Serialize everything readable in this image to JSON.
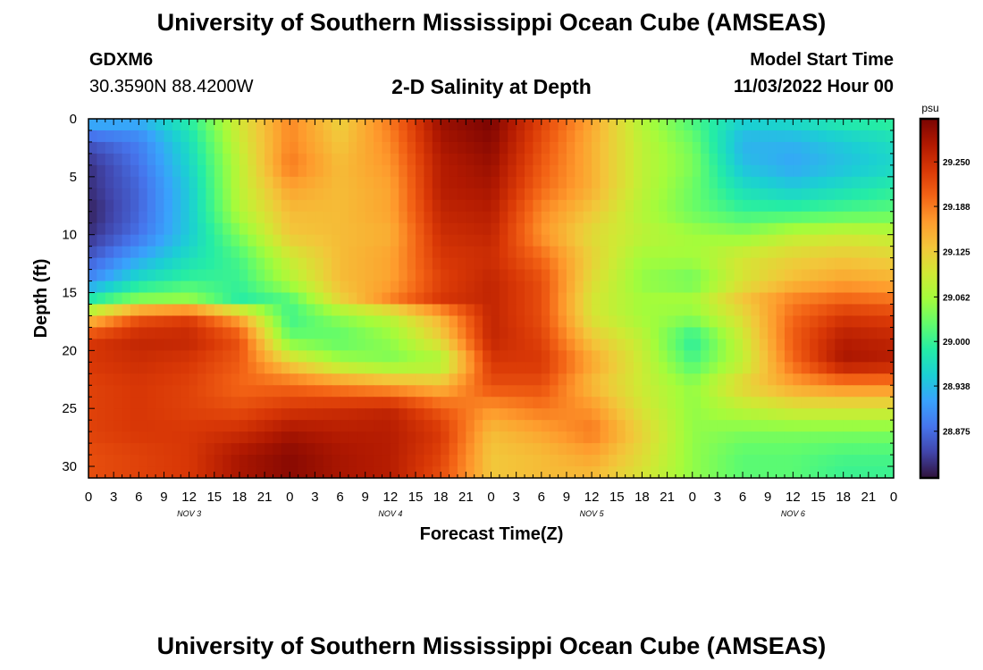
{
  "header": {
    "title": "University of Southern Mississippi Ocean Cube (AMSEAS)",
    "station_id": "GDXM6",
    "coordinates": "30.3590N  88.4200W",
    "chart_title": "2-D Salinity at Depth",
    "model_start_label": "Model Start Time",
    "model_start_value": "11/03/2022 Hour 00"
  },
  "footer": {
    "title": "University of Southern Mississippi Ocean Cube (AMSEAS)"
  },
  "colors": {
    "scale": [
      "#30123b",
      "#4145ab",
      "#4675ed",
      "#39a2fc",
      "#1bcfd4",
      "#24eca6",
      "#61fc6c",
      "#a4fc3b",
      "#d1e834",
      "#f3c63a",
      "#fe9b2d",
      "#f36315",
      "#d93806",
      "#b11901",
      "#7a0402"
    ]
  },
  "chart_data": {
    "type": "heatmap",
    "xlabel": "Forecast Time(Z)",
    "ylabel": "Depth (ft)",
    "x_ticks": [
      "0",
      "3",
      "6",
      "9",
      "12",
      "15",
      "18",
      "21",
      "0",
      "3",
      "6",
      "9",
      "12",
      "15",
      "18",
      "21",
      "0",
      "3",
      "6",
      "9",
      "12",
      "15",
      "18",
      "21",
      "0",
      "3",
      "6",
      "9",
      "12",
      "15",
      "18",
      "21",
      "0"
    ],
    "date_labels": [
      {
        "label": "NOV 3",
        "hour": 12
      },
      {
        "label": "NOV 4",
        "hour": 36
      },
      {
        "label": "NOV 5",
        "hour": 60
      },
      {
        "label": "NOV 6",
        "hour": 84
      }
    ],
    "x_range_hours": [
      0,
      96
    ],
    "y_ticks": [
      "0",
      "5",
      "10",
      "15",
      "20",
      "25",
      "30"
    ],
    "y_range_ft": [
      0,
      31
    ],
    "colorbar": {
      "unit": "psu",
      "ticks": [
        "29.250",
        "29.188",
        "29.125",
        "29.062",
        "29.000",
        "28.938",
        "28.875"
      ],
      "tick_values": [
        29.25,
        29.188,
        29.125,
        29.062,
        29.0,
        28.938,
        28.875
      ],
      "range": [
        28.81,
        29.31
      ]
    },
    "depths_ft": [
      0,
      2,
      4,
      6,
      8,
      10,
      12,
      14,
      15.5,
      17,
      19,
      21,
      23,
      25,
      27,
      29,
      31
    ],
    "hours": [
      0,
      6,
      12,
      18,
      24,
      30,
      36,
      42,
      48,
      54,
      60,
      66,
      72,
      78,
      84,
      90,
      96
    ],
    "salinity_psu": [
      [
        28.94,
        28.93,
        28.99,
        29.1,
        29.18,
        29.12,
        29.19,
        29.29,
        29.31,
        29.23,
        29.16,
        29.07,
        29.01,
        28.96,
        28.97,
        28.99,
        29.0
      ],
      [
        28.86,
        28.89,
        28.97,
        29.09,
        29.18,
        29.13,
        29.18,
        29.28,
        29.3,
        29.22,
        29.15,
        29.08,
        29.03,
        28.93,
        28.93,
        28.95,
        28.97
      ],
      [
        28.83,
        28.88,
        28.96,
        29.08,
        29.19,
        29.14,
        29.17,
        29.27,
        29.29,
        29.21,
        29.15,
        29.08,
        29.04,
        28.94,
        28.92,
        28.94,
        28.96
      ],
      [
        28.83,
        28.87,
        28.95,
        29.08,
        29.16,
        29.14,
        29.16,
        29.27,
        29.28,
        29.2,
        29.15,
        29.08,
        29.03,
        28.97,
        28.95,
        28.97,
        28.99
      ],
      [
        28.82,
        28.87,
        28.95,
        29.07,
        29.14,
        29.14,
        29.16,
        29.26,
        29.27,
        29.18,
        29.13,
        29.07,
        29.03,
        29.0,
        29.0,
        29.01,
        29.02
      ],
      [
        28.83,
        28.88,
        28.95,
        29.04,
        29.13,
        29.14,
        29.15,
        29.25,
        29.26,
        29.17,
        29.11,
        29.08,
        29.06,
        29.05,
        29.08,
        29.09,
        29.08
      ],
      [
        28.86,
        28.92,
        28.97,
        29.01,
        29.09,
        29.14,
        29.16,
        29.24,
        29.25,
        29.2,
        29.12,
        29.06,
        29.06,
        29.1,
        29.12,
        29.13,
        29.12
      ],
      [
        28.9,
        28.97,
        29.0,
        29.0,
        29.07,
        29.14,
        29.16,
        29.23,
        29.26,
        29.22,
        29.11,
        29.05,
        29.03,
        29.1,
        29.14,
        29.16,
        29.15
      ],
      [
        28.98,
        29.04,
        29.05,
        28.99,
        29.02,
        29.12,
        29.18,
        29.24,
        29.26,
        29.22,
        29.1,
        29.06,
        29.06,
        29.13,
        29.18,
        29.2,
        29.19
      ],
      [
        29.12,
        29.21,
        29.23,
        29.15,
        29.0,
        29.05,
        29.08,
        29.15,
        29.26,
        29.22,
        29.1,
        29.06,
        29.05,
        29.11,
        29.2,
        29.24,
        29.23
      ],
      [
        29.24,
        29.26,
        29.26,
        29.22,
        29.03,
        29.02,
        29.05,
        29.12,
        29.26,
        29.23,
        29.13,
        29.08,
        28.99,
        29.09,
        29.21,
        29.27,
        29.26
      ],
      [
        29.24,
        29.25,
        29.24,
        29.21,
        29.12,
        29.06,
        29.04,
        29.06,
        29.24,
        29.24,
        29.16,
        29.09,
        29.01,
        29.08,
        29.2,
        29.28,
        29.27
      ],
      [
        29.23,
        29.24,
        29.23,
        29.2,
        29.2,
        29.18,
        29.16,
        29.14,
        29.22,
        29.22,
        29.14,
        29.09,
        29.05,
        29.12,
        29.16,
        29.18,
        29.18
      ],
      [
        29.23,
        29.24,
        29.23,
        29.22,
        29.24,
        29.25,
        29.26,
        29.21,
        29.17,
        29.19,
        29.17,
        29.1,
        29.05,
        29.08,
        29.1,
        29.1,
        29.1
      ],
      [
        29.23,
        29.24,
        29.24,
        29.25,
        29.28,
        29.27,
        29.27,
        29.24,
        29.14,
        29.16,
        29.19,
        29.12,
        29.05,
        29.04,
        29.04,
        29.04,
        29.04
      ],
      [
        29.22,
        29.23,
        29.24,
        29.28,
        29.3,
        29.28,
        29.27,
        29.23,
        29.13,
        29.14,
        29.16,
        29.11,
        29.05,
        29.02,
        29.02,
        29.01,
        29.01
      ],
      [
        29.22,
        29.23,
        29.24,
        29.28,
        29.3,
        29.28,
        29.27,
        29.22,
        29.13,
        29.14,
        29.14,
        29.1,
        29.05,
        29.02,
        29.02,
        29.0,
        29.0
      ]
    ]
  }
}
